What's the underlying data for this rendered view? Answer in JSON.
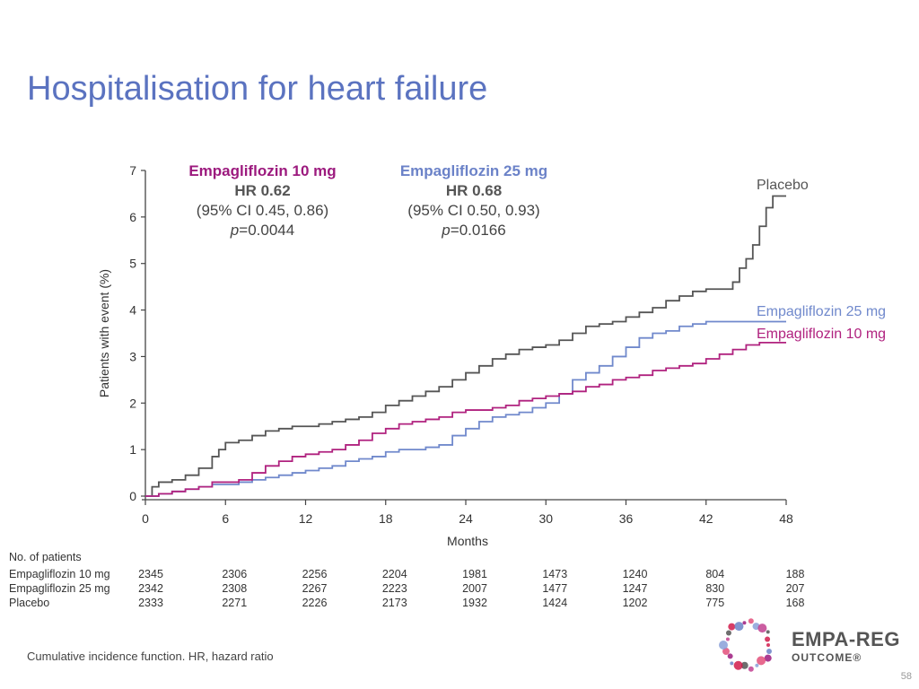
{
  "slide": {
    "title": "Hospitalisation for heart failure",
    "footnote": "Cumulative incidence function. HR, hazard ratio",
    "page_number": "58",
    "logo": {
      "name": "EMPA-REG",
      "sub": "OUTCOME®"
    }
  },
  "annotations": [
    {
      "drug": "Empagliflozin 10 mg",
      "hr": "HR 0.62",
      "ci": "(95% CI 0.45, 0.86)",
      "p_label": "p",
      "p_value": "=0.0044",
      "color": "#9c1a7e"
    },
    {
      "drug": "Empagliflozin 25 mg",
      "hr": "HR 0.68",
      "ci": "(95% CI 0.50, 0.93)",
      "p_label": "p",
      "p_value": "=0.0166",
      "color": "#6b82c8"
    }
  ],
  "risk_table": {
    "title": "No. of patients",
    "rows": [
      {
        "label": "Empagliflozin 10 mg",
        "values": [
          2345,
          2306,
          2256,
          2204,
          1981,
          1473,
          1240,
          804,
          188
        ]
      },
      {
        "label": "Empagliflozin 25 mg",
        "values": [
          2342,
          2308,
          2267,
          2223,
          2007,
          1477,
          1247,
          830,
          207
        ]
      },
      {
        "label": "Placebo",
        "values": [
          2333,
          2271,
          2226,
          2173,
          1932,
          1424,
          1202,
          775,
          168
        ]
      }
    ]
  },
  "chart_data": {
    "type": "line",
    "xlabel": "Months",
    "ylabel": "Patients with event (%)",
    "xlim": [
      0,
      48
    ],
    "ylim": [
      0,
      7
    ],
    "xticks": [
      0,
      6,
      12,
      18,
      24,
      30,
      36,
      42,
      48
    ],
    "yticks": [
      0,
      1,
      2,
      3,
      4,
      5,
      6,
      7
    ],
    "series": [
      {
        "name": "Placebo",
        "color": "#555555",
        "points": [
          [
            0,
            0
          ],
          [
            0.5,
            0.2
          ],
          [
            1,
            0.3
          ],
          [
            2,
            0.35
          ],
          [
            3,
            0.45
          ],
          [
            4,
            0.6
          ],
          [
            5,
            0.85
          ],
          [
            5.5,
            1.0
          ],
          [
            6,
            1.15
          ],
          [
            7,
            1.2
          ],
          [
            8,
            1.3
          ],
          [
            9,
            1.4
          ],
          [
            10,
            1.45
          ],
          [
            11,
            1.5
          ],
          [
            12,
            1.5
          ],
          [
            13,
            1.55
          ],
          [
            14,
            1.6
          ],
          [
            15,
            1.65
          ],
          [
            16,
            1.7
          ],
          [
            17,
            1.8
          ],
          [
            18,
            1.95
          ],
          [
            19,
            2.05
          ],
          [
            20,
            2.15
          ],
          [
            21,
            2.25
          ],
          [
            22,
            2.35
          ],
          [
            23,
            2.5
          ],
          [
            24,
            2.65
          ],
          [
            25,
            2.8
          ],
          [
            26,
            2.95
          ],
          [
            27,
            3.05
          ],
          [
            28,
            3.15
          ],
          [
            29,
            3.2
          ],
          [
            30,
            3.25
          ],
          [
            31,
            3.35
          ],
          [
            32,
            3.5
          ],
          [
            33,
            3.65
          ],
          [
            34,
            3.7
          ],
          [
            35,
            3.75
          ],
          [
            36,
            3.85
          ],
          [
            37,
            3.95
          ],
          [
            38,
            4.05
          ],
          [
            39,
            4.2
          ],
          [
            40,
            4.3
          ],
          [
            41,
            4.4
          ],
          [
            42,
            4.45
          ],
          [
            43,
            4.45
          ],
          [
            44,
            4.6
          ],
          [
            44.5,
            4.9
          ],
          [
            45,
            5.1
          ],
          [
            45.5,
            5.4
          ],
          [
            46,
            5.8
          ],
          [
            46.5,
            6.2
          ],
          [
            47,
            6.45
          ],
          [
            48,
            6.45
          ]
        ]
      },
      {
        "name": "Empagliflozin 25 mg",
        "color": "#7089cc",
        "points": [
          [
            0,
            0
          ],
          [
            1,
            0.05
          ],
          [
            2,
            0.1
          ],
          [
            3,
            0.15
          ],
          [
            4,
            0.2
          ],
          [
            5,
            0.25
          ],
          [
            6,
            0.25
          ],
          [
            7,
            0.3
          ],
          [
            8,
            0.35
          ],
          [
            9,
            0.4
          ],
          [
            10,
            0.45
          ],
          [
            11,
            0.5
          ],
          [
            12,
            0.55
          ],
          [
            13,
            0.6
          ],
          [
            14,
            0.65
          ],
          [
            15,
            0.75
          ],
          [
            16,
            0.8
          ],
          [
            17,
            0.85
          ],
          [
            18,
            0.95
          ],
          [
            19,
            1.0
          ],
          [
            20,
            1.0
          ],
          [
            21,
            1.05
          ],
          [
            22,
            1.1
          ],
          [
            23,
            1.3
          ],
          [
            24,
            1.45
          ],
          [
            25,
            1.6
          ],
          [
            26,
            1.7
          ],
          [
            27,
            1.75
          ],
          [
            28,
            1.8
          ],
          [
            29,
            1.9
          ],
          [
            30,
            2.0
          ],
          [
            31,
            2.2
          ],
          [
            32,
            2.5
          ],
          [
            33,
            2.65
          ],
          [
            34,
            2.8
          ],
          [
            35,
            3.0
          ],
          [
            36,
            3.2
          ],
          [
            37,
            3.4
          ],
          [
            38,
            3.5
          ],
          [
            39,
            3.55
          ],
          [
            40,
            3.65
          ],
          [
            41,
            3.7
          ],
          [
            42,
            3.75
          ],
          [
            45,
            3.75
          ],
          [
            48,
            3.75
          ]
        ]
      },
      {
        "name": "Empagliflozin 10 mg",
        "color": "#b0227f",
        "points": [
          [
            0,
            0
          ],
          [
            1,
            0.05
          ],
          [
            2,
            0.1
          ],
          [
            3,
            0.15
          ],
          [
            4,
            0.2
          ],
          [
            5,
            0.3
          ],
          [
            6,
            0.3
          ],
          [
            7,
            0.35
          ],
          [
            8,
            0.5
          ],
          [
            9,
            0.65
          ],
          [
            10,
            0.75
          ],
          [
            11,
            0.85
          ],
          [
            12,
            0.9
          ],
          [
            13,
            0.95
          ],
          [
            14,
            1.0
          ],
          [
            15,
            1.1
          ],
          [
            16,
            1.2
          ],
          [
            17,
            1.35
          ],
          [
            18,
            1.45
          ],
          [
            19,
            1.55
          ],
          [
            20,
            1.6
          ],
          [
            21,
            1.65
          ],
          [
            22,
            1.7
          ],
          [
            23,
            1.8
          ],
          [
            24,
            1.85
          ],
          [
            25,
            1.85
          ],
          [
            26,
            1.9
          ],
          [
            27,
            1.95
          ],
          [
            28,
            2.05
          ],
          [
            29,
            2.1
          ],
          [
            30,
            2.15
          ],
          [
            31,
            2.2
          ],
          [
            32,
            2.25
          ],
          [
            33,
            2.35
          ],
          [
            34,
            2.4
          ],
          [
            35,
            2.5
          ],
          [
            36,
            2.55
          ],
          [
            37,
            2.6
          ],
          [
            38,
            2.7
          ],
          [
            39,
            2.75
          ],
          [
            40,
            2.8
          ],
          [
            41,
            2.85
          ],
          [
            42,
            2.95
          ],
          [
            43,
            3.05
          ],
          [
            44,
            3.15
          ],
          [
            45,
            3.25
          ],
          [
            46,
            3.3
          ],
          [
            48,
            3.3
          ]
        ]
      }
    ],
    "line_labels": [
      {
        "series": "Placebo",
        "text": "Placebo"
      },
      {
        "series": "Empagliflozin 25 mg",
        "text": "Empagliflozin 25 mg"
      },
      {
        "series": "Empagliflozin 10 mg",
        "text": "Empagliflozin 10 mg"
      }
    ]
  }
}
